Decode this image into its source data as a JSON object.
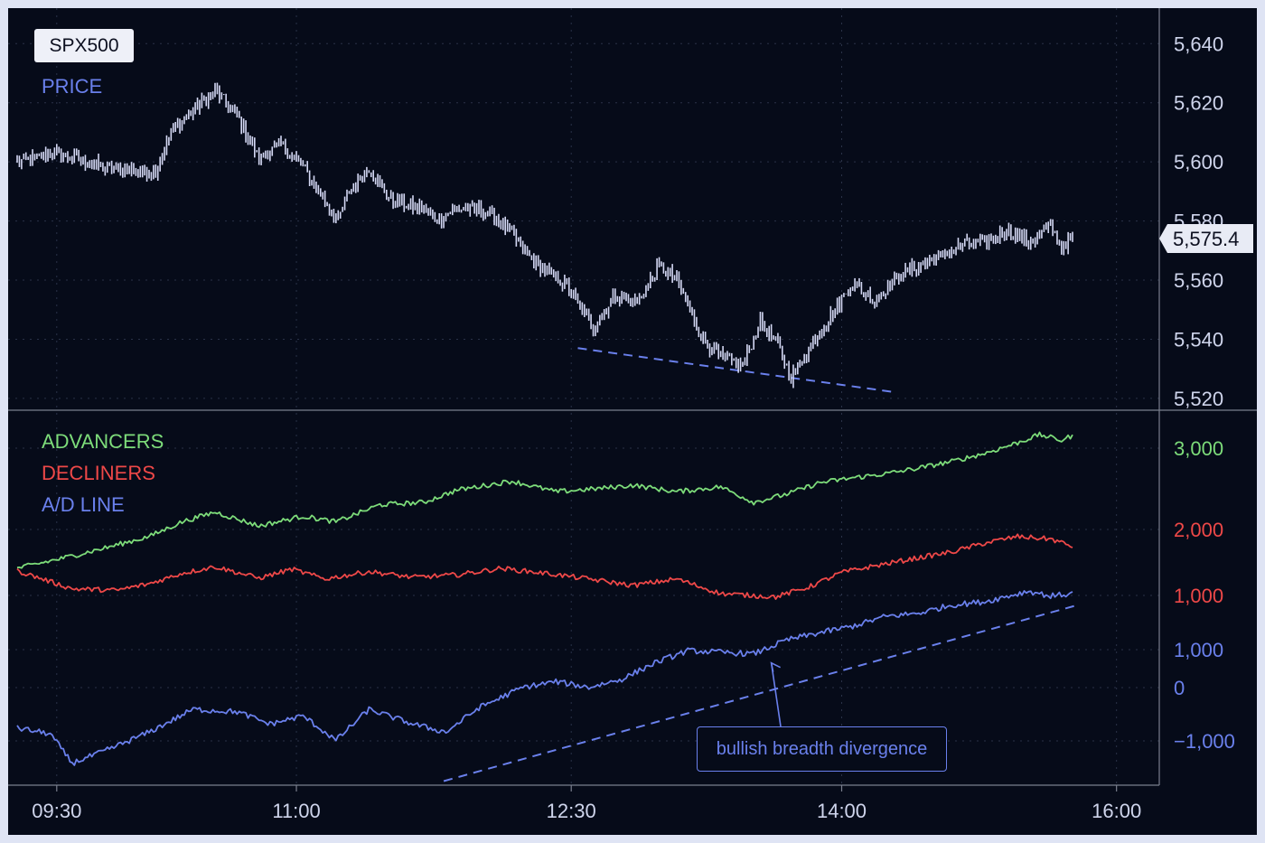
{
  "symbol_badge": "SPX500",
  "colors": {
    "background": "#060b19",
    "price": "#d4d8f4",
    "advancers": "#7ddc7a",
    "decliners": "#ee4848",
    "ad_line": "#6a80ec",
    "axis_text": "#cfd5ec",
    "divider": "#7a7f8e",
    "grid": "#2a3248"
  },
  "chart_data": [
    {
      "type": "line",
      "title": "",
      "legend": [
        "PRICE"
      ],
      "series": [
        {
          "name": "PRICE",
          "style": "candles-thin"
        }
      ],
      "y_ticks": [
        "5,640",
        "5,620",
        "5,600",
        "5,580",
        "5,560",
        "5,540",
        "5,520"
      ],
      "y_tick_values": [
        5640,
        5620,
        5600,
        5580,
        5560,
        5540,
        5520
      ],
      "ylim": [
        5516,
        5652
      ],
      "last_value_label": "5,575.4",
      "anchors": [
        [
          0,
          5600
        ],
        [
          18,
          5603
        ],
        [
          40,
          5598
        ],
        [
          55,
          5597
        ],
        [
          63,
          5597
        ],
        [
          70,
          5610
        ],
        [
          82,
          5619
        ],
        [
          90,
          5624
        ],
        [
          100,
          5616
        ],
        [
          110,
          5601
        ],
        [
          120,
          5606
        ],
        [
          130,
          5598
        ],
        [
          146,
          5580
        ],
        [
          150,
          5589
        ],
        [
          160,
          5598
        ],
        [
          170,
          5587
        ],
        [
          185,
          5584
        ],
        [
          192,
          5580
        ],
        [
          198,
          5584
        ],
        [
          208,
          5584
        ],
        [
          215,
          5583
        ],
        [
          222,
          5578
        ],
        [
          235,
          5566
        ],
        [
          250,
          5558
        ],
        [
          262,
          5544
        ],
        [
          272,
          5555
        ],
        [
          282,
          5552
        ],
        [
          292,
          5565
        ],
        [
          300,
          5560
        ],
        [
          312,
          5540
        ],
        [
          320,
          5534
        ],
        [
          330,
          5531
        ],
        [
          338,
          5546
        ],
        [
          346,
          5538
        ],
        [
          352,
          5527
        ],
        [
          360,
          5537
        ],
        [
          370,
          5548
        ],
        [
          380,
          5559
        ],
        [
          390,
          5553
        ],
        [
          400,
          5561
        ],
        [
          410,
          5565
        ],
        [
          420,
          5568
        ],
        [
          430,
          5572
        ],
        [
          440,
          5573
        ],
        [
          450,
          5577
        ],
        [
          460,
          5573
        ],
        [
          470,
          5578
        ],
        [
          475,
          5571
        ],
        [
          480,
          5575
        ]
      ],
      "trendline": {
        "from": [
          255,
          5537
        ],
        "to": [
          400,
          5522
        ],
        "style": "dashed"
      },
      "grid": true
    },
    {
      "type": "line",
      "title": "",
      "legend": [
        "ADVANCERS",
        "DECLINERS",
        "A/D LINE"
      ],
      "series": [
        {
          "name": "ADVANCERS",
          "anchors": [
            [
              0,
              1310
            ],
            [
              20,
              1430
            ],
            [
              40,
              1560
            ],
            [
              60,
              1700
            ],
            [
              75,
              1880
            ],
            [
              90,
              2000
            ],
            [
              110,
              1830
            ],
            [
              130,
              1950
            ],
            [
              145,
              1880
            ],
            [
              165,
              2090
            ],
            [
              185,
              2120
            ],
            [
              200,
              2270
            ],
            [
              225,
              2380
            ],
            [
              245,
              2250
            ],
            [
              265,
              2290
            ],
            [
              280,
              2330
            ],
            [
              300,
              2250
            ],
            [
              320,
              2310
            ],
            [
              335,
              2120
            ],
            [
              350,
              2220
            ],
            [
              365,
              2360
            ],
            [
              380,
              2420
            ],
            [
              395,
              2470
            ],
            [
              410,
              2540
            ],
            [
              425,
              2620
            ],
            [
              440,
              2720
            ],
            [
              455,
              2850
            ],
            [
              465,
              2950
            ],
            [
              475,
              2880
            ],
            [
              480,
              2940
            ]
          ]
        },
        {
          "name": "DECLINERS",
          "anchors": [
            [
              0,
              1280
            ],
            [
              25,
              1060
            ],
            [
              45,
              1040
            ],
            [
              60,
              1120
            ],
            [
              75,
              1250
            ],
            [
              90,
              1330
            ],
            [
              110,
              1190
            ],
            [
              125,
              1300
            ],
            [
              140,
              1180
            ],
            [
              160,
              1270
            ],
            [
              180,
              1200
            ],
            [
              200,
              1230
            ],
            [
              220,
              1310
            ],
            [
              240,
              1250
            ],
            [
              260,
              1180
            ],
            [
              280,
              1100
            ],
            [
              300,
              1180
            ],
            [
              320,
              1000
            ],
            [
              345,
              960
            ],
            [
              360,
              1080
            ],
            [
              375,
              1260
            ],
            [
              390,
              1340
            ],
            [
              410,
              1440
            ],
            [
              425,
              1510
            ],
            [
              440,
              1620
            ],
            [
              455,
              1700
            ],
            [
              470,
              1670
            ],
            [
              480,
              1580
            ]
          ]
        },
        {
          "name": "A/D LINE",
          "anchors": [
            [
              0,
              -650
            ],
            [
              15,
              -720
            ],
            [
              25,
              -1080
            ],
            [
              40,
              -930
            ],
            [
              60,
              -700
            ],
            [
              80,
              -420
            ],
            [
              100,
              -450
            ],
            [
              115,
              -600
            ],
            [
              130,
              -500
            ],
            [
              145,
              -800
            ],
            [
              160,
              -420
            ],
            [
              180,
              -600
            ],
            [
              195,
              -700
            ],
            [
              210,
              -400
            ],
            [
              230,
              -150
            ],
            [
              245,
              -80
            ],
            [
              260,
              -150
            ],
            [
              275,
              -50
            ],
            [
              290,
              150
            ],
            [
              305,
              300
            ],
            [
              320,
              280
            ],
            [
              335,
              260
            ],
            [
              350,
              430
            ],
            [
              365,
              520
            ],
            [
              380,
              600
            ],
            [
              395,
              720
            ],
            [
              410,
              760
            ],
            [
              425,
              860
            ],
            [
              440,
              900
            ],
            [
              460,
              1030
            ],
            [
              470,
              970
            ],
            [
              480,
              1000
            ]
          ]
        }
      ],
      "y_ticks_advancers": [
        "3,000",
        "2,000"
      ],
      "y_ticks_decliners": [
        "1,000"
      ],
      "y_ticks_ad_line": [
        "1,000",
        "0",
        "−1,000"
      ],
      "ylim": [
        -1350,
        3250
      ],
      "trendline": {
        "from": [
          194,
          -1300
        ],
        "to": [
          481,
          850
        ],
        "style": "dashed"
      },
      "annotation": {
        "text": "bullish breadth divergence",
        "arrow_to": [
          343,
          150
        ]
      },
      "grid": true
    }
  ],
  "x_axis": {
    "ticks": [
      "09:30",
      "11:00",
      "12:30",
      "14:00",
      "16:00"
    ],
    "tick_bars": [
      18,
      127,
      252,
      375,
      500
    ]
  }
}
